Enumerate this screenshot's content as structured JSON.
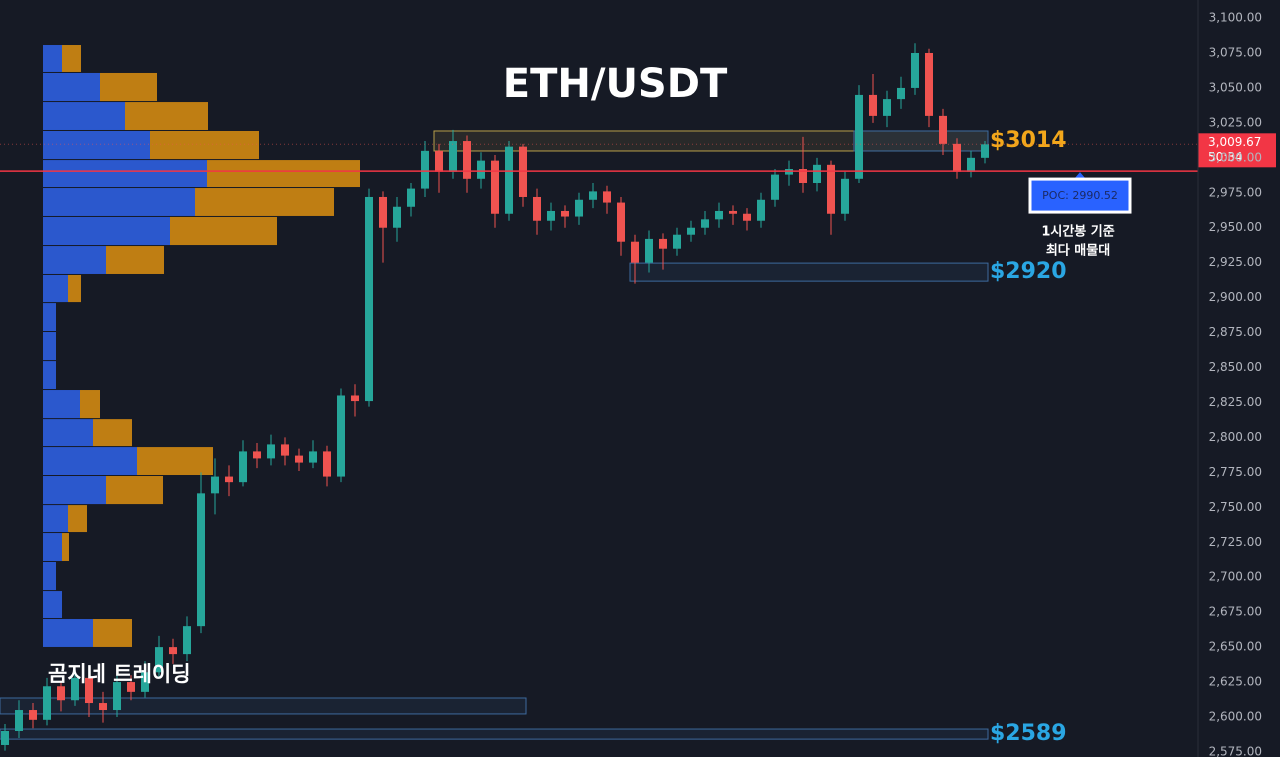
{
  "chart_data": {
    "type": "candlestick",
    "title": "ETH/USDT",
    "watermark": "곰지네 트레이딩",
    "open": [
      2580,
      2590,
      2605,
      2598,
      2622,
      2612,
      2628,
      2610,
      2605,
      2625,
      2618,
      2632,
      2650,
      2645,
      2665,
      2760,
      2772,
      2768,
      2790,
      2785,
      2795,
      2787,
      2782,
      2790,
      2772,
      2830,
      2826,
      2972,
      2950,
      2965,
      2978,
      3005,
      2990,
      3012,
      2985,
      2998,
      2960,
      3008,
      2972,
      2955,
      2962,
      2958,
      2970,
      2976,
      2968,
      2940,
      2925,
      2942,
      2935,
      2945,
      2950,
      2956,
      2962,
      2960,
      2955,
      2970,
      2988,
      2992,
      2982,
      2995,
      2960,
      2985,
      3045,
      3030,
      3042,
      3050,
      3075,
      3030,
      3010,
      2990,
      3000
    ],
    "high": [
      2595,
      2612,
      2610,
      2628,
      2626,
      2635,
      2632,
      2618,
      2630,
      2630,
      2640,
      2658,
      2656,
      2672,
      2775,
      2785,
      2780,
      2798,
      2796,
      2802,
      2800,
      2792,
      2798,
      2794,
      2835,
      2838,
      2978,
      2976,
      2972,
      2982,
      3012,
      3010,
      3020,
      3016,
      3004,
      3002,
      3012,
      3010,
      2978,
      2968,
      2966,
      2975,
      2982,
      2980,
      2972,
      2945,
      2948,
      2946,
      2950,
      2955,
      2962,
      2968,
      2966,
      2964,
      2975,
      2992,
      2998,
      3015,
      3000,
      2998,
      2990,
      3052,
      3060,
      3048,
      3058,
      3082,
      3078,
      3035,
      3014,
      3005,
      3012
    ],
    "low": [
      2576,
      2585,
      2592,
      2594,
      2604,
      2608,
      2600,
      2596,
      2600,
      2612,
      2614,
      2628,
      2638,
      2640,
      2660,
      2745,
      2758,
      2765,
      2778,
      2780,
      2780,
      2776,
      2778,
      2765,
      2768,
      2815,
      2822,
      2925,
      2940,
      2958,
      2972,
      2975,
      2985,
      2975,
      2978,
      2950,
      2955,
      2965,
      2945,
      2948,
      2950,
      2952,
      2964,
      2960,
      2930,
      2910,
      2918,
      2920,
      2930,
      2940,
      2945,
      2950,
      2952,
      2948,
      2950,
      2965,
      2980,
      2975,
      2976,
      2945,
      2955,
      2982,
      3025,
      3022,
      3035,
      3045,
      3022,
      3002,
      2985,
      2986,
      2996
    ],
    "close": [
      2590,
      2605,
      2598,
      2622,
      2612,
      2628,
      2610,
      2605,
      2625,
      2618,
      2632,
      2650,
      2645,
      2665,
      2760,
      2772,
      2768,
      2790,
      2785,
      2795,
      2787,
      2782,
      2790,
      2772,
      2830,
      2826,
      2972,
      2950,
      2965,
      2978,
      3005,
      2990,
      3012,
      2985,
      2998,
      2960,
      3008,
      2972,
      2955,
      2962,
      2958,
      2970,
      2976,
      2968,
      2940,
      2925,
      2942,
      2935,
      2945,
      2950,
      2956,
      2962,
      2960,
      2955,
      2970,
      2988,
      2992,
      2982,
      2995,
      2960,
      2985,
      3045,
      3030,
      3042,
      3050,
      3075,
      3030,
      3010,
      2990,
      3000,
      3009.67
    ],
    "up_color": "#26a69a",
    "down_color": "#ef5350",
    "ylim": [
      2571.4,
      3112.9
    ],
    "yticks": [
      {
        "value": 2575,
        "label": "2,575.00"
      },
      {
        "value": 2600,
        "label": "2,600.00"
      },
      {
        "value": 2625,
        "label": "2,625.00"
      },
      {
        "value": 2650,
        "label": "2,650.00"
      },
      {
        "value": 2675,
        "label": "2,675.00"
      },
      {
        "value": 2700,
        "label": "2,700.00"
      },
      {
        "value": 2725,
        "label": "2,725.00"
      },
      {
        "value": 2750,
        "label": "2,750.00"
      },
      {
        "value": 2775,
        "label": "2,775.00"
      },
      {
        "value": 2800,
        "label": "2,800.00"
      },
      {
        "value": 2825,
        "label": "2,825.00"
      },
      {
        "value": 2850,
        "label": "2,850.00"
      },
      {
        "value": 2875,
        "label": "2,875.00"
      },
      {
        "value": 2900,
        "label": "2,900.00"
      },
      {
        "value": 2925,
        "label": "2,925.00"
      },
      {
        "value": 2950,
        "label": "2,950.00"
      },
      {
        "value": 2975,
        "label": "2,975.00"
      },
      {
        "value": 3000,
        "label": "3,000.00"
      },
      {
        "value": 3025,
        "label": "3,025.00"
      },
      {
        "value": 3050,
        "label": "3,050.00"
      },
      {
        "value": 3075,
        "label": "3,075.00"
      },
      {
        "value": 3100,
        "label": "3,100.00"
      }
    ],
    "grid": false,
    "profile": {
      "bins": [
        3080.7,
        3060.7,
        3039.9,
        3019.2,
        2998.4,
        2978.4,
        2957.7,
        2936.9,
        2916.2,
        2896.1,
        2875.4,
        2854.6,
        2833.9,
        2813.1,
        2793.1,
        2772.4,
        2751.6,
        2731.6,
        2710.9,
        2690.1,
        2670.1,
        2649.4
      ],
      "buy": [
        19,
        57,
        82,
        107,
        164,
        152,
        127,
        63,
        25,
        13,
        13,
        13,
        37,
        50,
        94,
        63,
        25,
        19,
        13,
        19,
        50
      ],
      "sell": [
        19,
        57,
        83,
        109,
        153,
        139,
        107,
        58,
        13,
        0,
        0,
        0,
        20,
        39,
        76,
        57,
        19,
        7,
        0,
        0,
        39
      ],
      "buy_color": "#2d5fe0",
      "sell_color": "#d18a12"
    },
    "zones": [
      {
        "top": 3019.2,
        "bottom": 3004.9,
        "start": 31,
        "end": 70,
        "color": "#b8a04a",
        "label": "$3014",
        "label_color": "#f2a71b"
      },
      {
        "top": 3019.2,
        "bottom": 3004.9,
        "start": 61,
        "end": 70,
        "color": "#3d6a9e"
      },
      {
        "top": 2924.7,
        "bottom": 2911.8,
        "start": 45,
        "end": 70,
        "color": "#3d6a9e",
        "label": "$2920",
        "label_color": "#2aa6e3"
      },
      {
        "top": 2613.6,
        "bottom": 2602.2,
        "start": 0,
        "end": 37,
        "color": "#3d6a9e"
      },
      {
        "top": 2591.4,
        "bottom": 2584.2,
        "start": 0,
        "end": 70,
        "color": "#3d6a9e",
        "label": "$2589",
        "label_color": "#2aa6e3"
      }
    ],
    "poc": {
      "value": 2990.52,
      "label": "POC: 2990.52",
      "color": "#f23645"
    },
    "last": {
      "value": 3009.67,
      "label": "3,009.67",
      "countdown": "50:34"
    },
    "annotation": [
      "1시간봉 기준",
      "최다 매물대"
    ]
  }
}
